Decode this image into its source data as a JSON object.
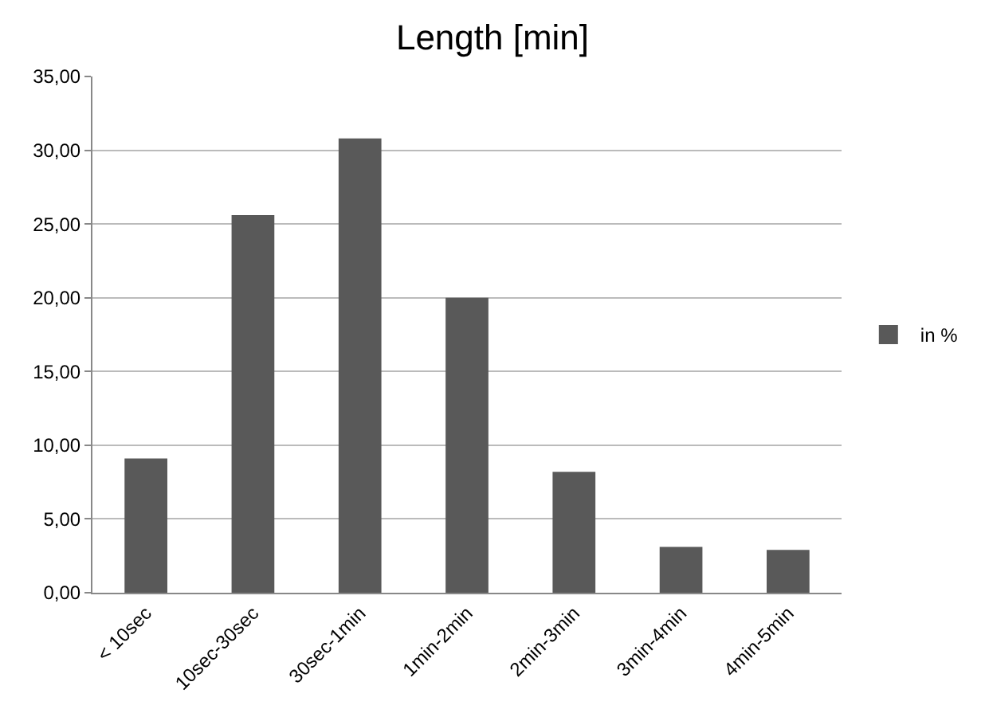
{
  "chart_data": {
    "type": "bar",
    "title": "Length [min]",
    "categories": [
      "< 10sec",
      "10sec-30sec",
      "30sec-1min",
      "1min-2min",
      "2min-3min",
      "3min-4min",
      "4min-5min"
    ],
    "series": [
      {
        "name": "in %",
        "color": "#595959",
        "values": [
          9.1,
          25.6,
          30.8,
          20.0,
          8.2,
          3.1,
          2.9
        ]
      }
    ],
    "ylim": [
      0,
      35
    ],
    "yticks": [
      {
        "value": 0,
        "label": "0,00"
      },
      {
        "value": 5,
        "label": "5,00"
      },
      {
        "value": 10,
        "label": "10,00"
      },
      {
        "value": 15,
        "label": "15,00"
      },
      {
        "value": 20,
        "label": "20,00"
      },
      {
        "value": 25,
        "label": "25,00"
      },
      {
        "value": 30,
        "label": "30,00"
      },
      {
        "value": 35,
        "label": "35,00"
      }
    ],
    "grid": "y",
    "legend": "right"
  }
}
